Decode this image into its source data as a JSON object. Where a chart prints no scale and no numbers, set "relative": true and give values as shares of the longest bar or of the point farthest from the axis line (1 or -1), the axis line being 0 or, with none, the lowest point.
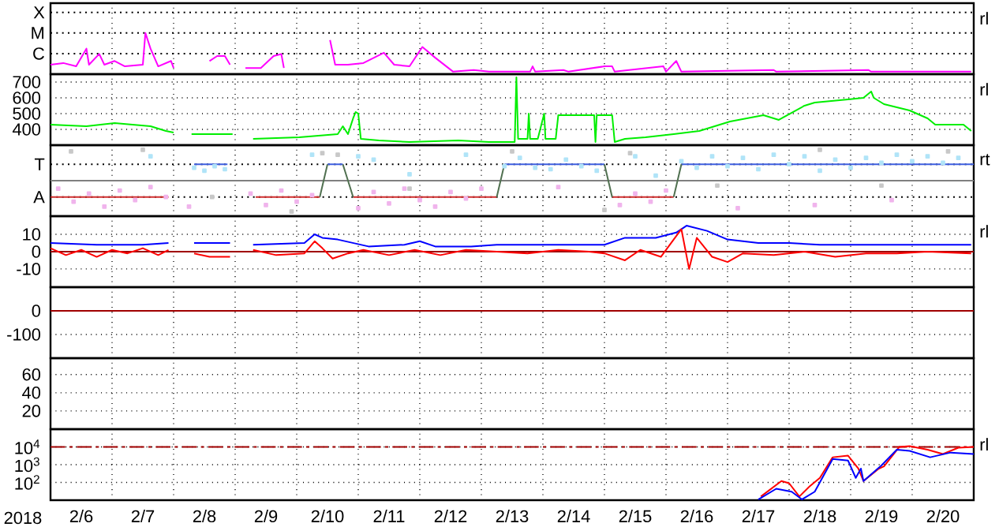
{
  "chart_data": [
    {
      "type": "line",
      "xlim": [
        "2018-02-06T00:00",
        "2018-02-21T00:00"
      ],
      "xticks": [
        {
          "value": "2018-02-07T00:00",
          "label": null
        },
        {
          "value": "2018-02-08T00:00",
          "label": null
        },
        {
          "value": "2018-02-09T00:00",
          "label": null
        },
        {
          "value": "2018-02-10T00:00",
          "label": null
        },
        {
          "value": "2018-02-11T00:00",
          "label": null
        },
        {
          "value": "2018-02-12T00:00",
          "label": null
        },
        {
          "value": "2018-02-13T00:00",
          "label": null
        },
        {
          "value": "2018-02-14T00:00",
          "label": null
        },
        {
          "value": "2018-02-15T00:00",
          "label": null
        },
        {
          "value": "2018-02-16T00:00",
          "label": null
        },
        {
          "value": "2018-02-17T00:00",
          "label": null
        },
        {
          "value": "2018-02-18T00:00",
          "label": null
        },
        {
          "value": "2018-02-19T00:00",
          "label": null
        },
        {
          "value": "2018-02-20T00:00",
          "label": null
        }
      ],
      "relative": true,
      "grid": "x",
      "tick_labels": "y",
      "annotations": [
        "rl"
      ],
      "ref_lines": [
        {
          "axis": "y",
          "value": 1.5,
          "label": "X",
          "color": "#000000",
          "line_style": "dotted"
        },
        {
          "axis": "y",
          "value": 1,
          "label": "M",
          "color": "#000000",
          "line_style": "dotted"
        },
        {
          "axis": "y",
          "value": 0.5,
          "label": "C",
          "color": "#000000",
          "line_style": "dotted"
        }
      ],
      "series": [
        {
          "color": "#ff00ff",
          "x": [
            "2018-02-06T00:00",
            "2018-02-06T05:00",
            "2018-02-06T10:00",
            "2018-02-06T14:00",
            "2018-02-06T15:00",
            "2018-02-06T19:00",
            "2018-02-06T21:00",
            "2018-02-07T01:00",
            "2018-02-07T05:00",
            "2018-02-07T12:00",
            "2018-02-07T13:00",
            "2018-02-07T15:00",
            "2018-02-07T18:00",
            "2018-02-07T23:00",
            "2018-02-08T00:00",
            "2018-02-08T06:00",
            "2018-02-08T14:00",
            "2018-02-08T17:00",
            "2018-02-08T20:00",
            "2018-02-08T22:00",
            "2018-02-09T00:00",
            "2018-02-09T04:00",
            "2018-02-09T10:00",
            "2018-02-09T15:00",
            "2018-02-09T18:00",
            "2018-02-09T19:00",
            "2018-02-10T02:00",
            "2018-02-10T13:00",
            "2018-02-10T15:00",
            "2018-02-10T20:00",
            "2018-02-11T02:00",
            "2018-02-11T10:00",
            "2018-02-11T14:00",
            "2018-02-11T20:00",
            "2018-02-12T01:00",
            "2018-02-12T06:00",
            "2018-02-12T13:00",
            "2018-02-12T21:00",
            "2018-02-13T03:00",
            "2018-02-13T19:00",
            "2018-02-13T20:00",
            "2018-02-13T21:00",
            "2018-02-14T08:00",
            "2018-02-14T10:00",
            "2018-02-15T00:00",
            "2018-02-15T03:00",
            "2018-02-15T04:00",
            "2018-02-15T23:00",
            "2018-02-16T00:00",
            "2018-02-16T04:00",
            "2018-02-16T06:00",
            "2018-02-17T18:00",
            "2018-02-17T19:00",
            "2018-02-19T07:00",
            "2018-02-19T08:00",
            "2018-02-20T23:00"
          ],
          "values": [
            0.23,
            0.27,
            0.19,
            0.62,
            0.23,
            0.49,
            0.23,
            0.32,
            0.19,
            0.23,
            1,
            0.62,
            0.19,
            0.32,
            0.15,
            null,
            0.32,
            0.44,
            0.44,
            0.23,
            null,
            0.15,
            0.15,
            0.44,
            0.49,
            0.15,
            null,
            0.83,
            0.23,
            0.23,
            0.27,
            0.52,
            0.23,
            0.19,
            0.66,
            0.4,
            0.06,
            0.1,
            0.06,
            0.06,
            0.19,
            0.06,
            0.1,
            0.06,
            0.19,
            0.19,
            0.06,
            0.19,
            0.06,
            0.32,
            0.06,
            0.1,
            0.06,
            0.1,
            0.06,
            0.06
          ]
        }
      ]
    },
    {
      "type": "line",
      "xlim": [
        "2018-02-06T00:00",
        "2018-02-21T00:00"
      ],
      "xticks": [
        {
          "value": "2018-02-07T00:00",
          "label": null
        },
        {
          "value": "2018-02-08T00:00",
          "label": null
        },
        {
          "value": "2018-02-09T00:00",
          "label": null
        },
        {
          "value": "2018-02-10T00:00",
          "label": null
        },
        {
          "value": "2018-02-11T00:00",
          "label": null
        },
        {
          "value": "2018-02-12T00:00",
          "label": null
        },
        {
          "value": "2018-02-13T00:00",
          "label": null
        },
        {
          "value": "2018-02-14T00:00",
          "label": null
        },
        {
          "value": "2018-02-15T00:00",
          "label": null
        },
        {
          "value": "2018-02-16T00:00",
          "label": null
        },
        {
          "value": "2018-02-17T00:00",
          "label": null
        },
        {
          "value": "2018-02-18T00:00",
          "label": null
        },
        {
          "value": "2018-02-19T00:00",
          "label": null
        },
        {
          "value": "2018-02-20T00:00",
          "label": null
        }
      ],
      "ylim": [
        300,
        750
      ],
      "yticks": [
        400,
        500,
        600,
        700
      ],
      "grid": true,
      "tick_labels": "y",
      "annotations": [
        "rl"
      ],
      "series": [
        {
          "color": "#00ee00",
          "x": [
            "2018-02-06T00:00",
            "2018-02-06T14:00",
            "2018-02-07T01:00",
            "2018-02-07T15:00",
            "2018-02-07T21:00",
            "2018-02-08T00:00",
            "2018-02-08T02:00",
            "2018-02-08T07:00",
            "2018-02-08T23:00",
            "2018-02-09T03:00",
            "2018-02-09T07:00",
            "2018-02-10T01:00",
            "2018-02-10T16:00",
            "2018-02-10T18:00",
            "2018-02-10T20:00",
            "2018-02-10T22:00",
            "2018-02-10T23:00",
            "2018-02-11T00:00",
            "2018-02-11T01:00",
            "2018-02-11T08:00",
            "2018-02-11T20:00",
            "2018-02-12T15:00",
            "2018-02-13T03:00",
            "2018-02-13T13:00",
            "2018-02-13T13:40",
            "2018-02-13T14:20",
            "2018-02-13T18:00",
            "2018-02-13T18:30",
            "2018-02-13T19:00",
            "2018-02-13T22:00",
            "2018-02-14T00:30",
            "2018-02-14T01:00",
            "2018-02-14T05:00",
            "2018-02-14T06:00",
            "2018-02-14T20:00",
            "2018-02-14T20:30",
            "2018-02-14T21:00",
            "2018-02-15T03:00",
            "2018-02-15T04:00",
            "2018-02-15T08:00",
            "2018-02-15T16:00",
            "2018-02-16T03:00",
            "2018-02-16T13:00",
            "2018-02-17T01:00",
            "2018-02-17T14:00",
            "2018-02-17T20:00",
            "2018-02-18T06:00",
            "2018-02-18T10:00",
            "2018-02-18T23:00",
            "2018-02-19T05:00",
            "2018-02-19T08:00",
            "2018-02-19T09:00",
            "2018-02-19T13:00",
            "2018-02-19T23:00",
            "2018-02-20T06:00",
            "2018-02-20T09:00",
            "2018-02-20T20:00",
            "2018-02-20T23:00"
          ],
          "values": [
            430,
            420,
            440,
            420,
            390,
            380,
            null,
            370,
            370,
            null,
            340,
            350,
            370,
            420,
            370,
            470,
            510,
            500,
            340,
            330,
            320,
            330,
            320,
            320,
            730,
            340,
            340,
            500,
            340,
            340,
            500,
            340,
            340,
            490,
            490,
            320,
            490,
            490,
            320,
            340,
            350,
            370,
            390,
            450,
            490,
            460,
            550,
            570,
            590,
            600,
            640,
            600,
            560,
            520,
            470,
            430,
            430,
            390
          ]
        }
      ]
    },
    {
      "type": "line",
      "xlim": [
        "2018-02-06T00:00",
        "2018-02-21T00:00"
      ],
      "xticks": [
        {
          "value": "2018-02-07T00:00",
          "label": null
        },
        {
          "value": "2018-02-08T00:00",
          "label": null
        },
        {
          "value": "2018-02-09T00:00",
          "label": null
        },
        {
          "value": "2018-02-10T00:00",
          "label": null
        },
        {
          "value": "2018-02-11T00:00",
          "label": null
        },
        {
          "value": "2018-02-12T00:00",
          "label": null
        },
        {
          "value": "2018-02-13T00:00",
          "label": null
        },
        {
          "value": "2018-02-14T00:00",
          "label": null
        },
        {
          "value": "2018-02-15T00:00",
          "label": null
        },
        {
          "value": "2018-02-16T00:00",
          "label": null
        },
        {
          "value": "2018-02-17T00:00",
          "label": null
        },
        {
          "value": "2018-02-18T00:00",
          "label": null
        },
        {
          "value": "2018-02-19T00:00",
          "label": null
        },
        {
          "value": "2018-02-20T00:00",
          "label": null
        }
      ],
      "relative": true,
      "grid": "x",
      "tick_labels": "y",
      "annotations": [
        "rt"
      ],
      "ref_lines": [
        {
          "axis": "y",
          "value": 0,
          "color": "#808080"
        },
        {
          "axis": "y",
          "value": 0.53,
          "label": "T",
          "color": "#000000",
          "line_style": "dotted"
        },
        {
          "axis": "y",
          "value": -0.53,
          "label": "A",
          "color": "#000000",
          "line_style": "dotted"
        }
      ],
      "series": [
        {
          "type": "scatter",
          "marker": "square",
          "color": "#c8c8c8",
          "x": [
            "2018-02-06T08:00",
            "2018-02-07T12:00",
            "2018-02-08T15:00",
            "2018-02-09T22:00",
            "2018-02-10T10:00",
            "2018-02-10T16:00",
            "2018-02-11T20:00",
            "2018-02-13T12:00",
            "2018-02-15T00:00",
            "2018-02-15T10:00",
            "2018-02-16T20:00",
            "2018-02-18T12:00",
            "2018-02-19T12:00",
            "2018-02-20T14:00"
          ],
          "values": [
            0.95,
            1,
            -0.53,
            -1,
            0.89,
            0.84,
            -0.26,
            0.95,
            -0.95,
            0.89,
            -0.16,
            1,
            -0.16,
            0.95
          ]
        },
        {
          "type": "scatter",
          "marker": "square",
          "color": "#b0e4f8",
          "x": [
            "2018-02-07T15:00",
            "2018-02-08T08:00",
            "2018-02-08T12:00",
            "2018-02-08T16:00",
            "2018-02-08T20:00",
            "2018-02-10T06:00",
            "2018-02-11T00:00",
            "2018-02-11T06:00",
            "2018-02-11T20:00",
            "2018-02-12T18:00",
            "2018-02-13T09:00",
            "2018-02-13T15:00",
            "2018-02-13T21:00",
            "2018-02-14T03:00",
            "2018-02-14T09:00",
            "2018-02-14T15:00",
            "2018-02-14T21:00",
            "2018-02-15T12:00",
            "2018-02-15T20:00",
            "2018-02-16T06:00",
            "2018-02-16T12:00",
            "2018-02-16T18:00",
            "2018-02-17T00:00",
            "2018-02-17T06:00",
            "2018-02-17T12:00",
            "2018-02-17T18:00",
            "2018-02-18T00:00",
            "2018-02-18T06:00",
            "2018-02-18T12:00",
            "2018-02-18T18:00",
            "2018-02-19T00:00",
            "2018-02-19T06:00",
            "2018-02-19T12:00",
            "2018-02-19T18:00",
            "2018-02-20T00:00",
            "2018-02-20T06:00",
            "2018-02-20T12:00",
            "2018-02-20T18:00"
          ],
          "values": [
            0.79,
            0.42,
            0.32,
            0.47,
            0.37,
            0.84,
            0.79,
            0.68,
            0.21,
            0.84,
            0.47,
            0.74,
            0.42,
            0.37,
            0.68,
            0.47,
            0.32,
            0.79,
            0.16,
            0.63,
            0.42,
            0.79,
            0.47,
            0.74,
            0.37,
            0.84,
            0.53,
            0.79,
            0.32,
            0.68,
            0.42,
            0.74,
            0.58,
            0.84,
            0.63,
            0.79,
            0.58,
            0.74
          ]
        },
        {
          "type": "scatter",
          "marker": "square",
          "color": "#f0b4ec",
          "x": [
            "2018-02-06T03:00",
            "2018-02-06T09:00",
            "2018-02-06T15:00",
            "2018-02-06T21:00",
            "2018-02-07T03:00",
            "2018-02-07T09:00",
            "2018-02-07T15:00",
            "2018-02-07T21:00",
            "2018-02-08T06:00",
            "2018-02-09T06:00",
            "2018-02-09T12:00",
            "2018-02-09T18:00",
            "2018-02-10T00:00",
            "2018-02-10T06:00",
            "2018-02-11T00:00",
            "2018-02-11T06:00",
            "2018-02-11T12:00",
            "2018-02-11T18:00",
            "2018-02-12T00:00",
            "2018-02-12T06:00",
            "2018-02-12T12:00",
            "2018-02-12T18:00",
            "2018-02-13T00:00",
            "2018-02-14T06:00",
            "2018-02-15T06:00",
            "2018-02-15T12:00",
            "2018-02-15T18:00",
            "2018-02-16T00:00",
            "2018-02-17T04:00",
            "2018-02-18T10:00",
            "2018-02-19T16:00"
          ],
          "values": [
            -0.26,
            -0.68,
            -0.42,
            -0.84,
            -0.32,
            -0.63,
            -0.21,
            -0.53,
            -0.84,
            -0.42,
            -0.79,
            -0.32,
            -0.68,
            -0.47,
            -0.89,
            -0.37,
            -0.74,
            -0.26,
            -0.63,
            -0.84,
            -0.37,
            -0.58,
            -0.26,
            -0.21,
            -0.79,
            -0.42,
            -0.68,
            -0.32,
            -0.89,
            -0.79,
            -0.63
          ]
        },
        {
          "color": "#4060e0",
          "x": [
            "2018-02-08T08:00",
            "2018-02-08T21:00",
            "2018-02-09T00:00",
            "2018-02-10T12:00",
            "2018-02-10T18:00",
            "2018-02-10T20:00",
            "2018-02-13T09:00",
            "2018-02-15T00:00",
            "2018-02-15T12:00",
            "2018-02-16T06:00",
            "2018-02-21T00:00"
          ],
          "values": [
            0.53,
            0.53,
            null,
            0.53,
            0.53,
            null,
            0.53,
            0.53,
            null,
            0.53,
            0.53
          ]
        },
        {
          "color": "#d03030",
          "x": [
            "2018-02-06T00:00",
            "2018-02-07T22:00",
            "2018-02-08T00:00",
            "2018-02-09T08:00",
            "2018-02-10T09:00",
            "2018-02-10T10:00",
            "2018-02-10T22:00",
            "2018-02-13T06:00",
            "2018-02-14T00:00",
            "2018-02-15T03:00",
            "2018-02-16T03:00"
          ],
          "values": [
            -0.53,
            -0.53,
            null,
            -0.53,
            -0.53,
            null,
            -0.53,
            -0.53,
            null,
            -0.53,
            -0.53
          ]
        },
        {
          "color": "#507050",
          "x": [
            "2018-02-10T09:00",
            "2018-02-10T12:00",
            "2018-02-10T15:00",
            "2018-02-10T18:00",
            "2018-02-10T22:00",
            "2018-02-11T00:00",
            "2018-02-13T06:00",
            "2018-02-13T09:00",
            "2018-02-14T00:00",
            "2018-02-15T00:00",
            "2018-02-15T03:00",
            "2018-02-15T12:00",
            "2018-02-16T03:00",
            "2018-02-16T06:00"
          ],
          "values": [
            -0.53,
            0.53,
            null,
            0.53,
            -0.53,
            null,
            -0.53,
            0.53,
            null,
            0.53,
            -0.53,
            null,
            -0.53,
            0.53
          ]
        }
      ]
    },
    {
      "type": "line",
      "xlim": [
        "2018-02-06T00:00",
        "2018-02-21T00:00"
      ],
      "xticks": [
        {
          "value": "2018-02-07T00:00",
          "label": null
        },
        {
          "value": "2018-02-08T00:00",
          "label": null
        },
        {
          "value": "2018-02-09T00:00",
          "label": null
        },
        {
          "value": "2018-02-10T00:00",
          "label": null
        },
        {
          "value": "2018-02-11T00:00",
          "label": null
        },
        {
          "value": "2018-02-12T00:00",
          "label": null
        },
        {
          "value": "2018-02-13T00:00",
          "label": null
        },
        {
          "value": "2018-02-14T00:00",
          "label": null
        },
        {
          "value": "2018-02-15T00:00",
          "label": null
        },
        {
          "value": "2018-02-16T00:00",
          "label": null
        },
        {
          "value": "2018-02-17T00:00",
          "label": null
        },
        {
          "value": "2018-02-18T00:00",
          "label": null
        },
        {
          "value": "2018-02-19T00:00",
          "label": null
        },
        {
          "value": "2018-02-20T00:00",
          "label": null
        }
      ],
      "ylim": [
        -20.5,
        20.5
      ],
      "yticks": [
        -10,
        0,
        10
      ],
      "grid": true,
      "tick_labels": "y",
      "annotations": [
        "rl"
      ],
      "ref_lines": [
        {
          "axis": "y",
          "value": 0,
          "color": "#a00000"
        }
      ],
      "series": [
        {
          "color": "#0000ff",
          "x": [
            "2018-02-06T00:00",
            "2018-02-06T18:00",
            "2018-02-07T12:00",
            "2018-02-07T22:00",
            "2018-02-08T03:00",
            "2018-02-08T08:00",
            "2018-02-08T22:00",
            "2018-02-09T03:00",
            "2018-02-09T07:00",
            "2018-02-10T03:00",
            "2018-02-10T07:00",
            "2018-02-10T10:00",
            "2018-02-10T16:00",
            "2018-02-10T22:00",
            "2018-02-11T04:00",
            "2018-02-11T18:00",
            "2018-02-12T00:00",
            "2018-02-12T06:00",
            "2018-02-12T20:00",
            "2018-02-13T06:00",
            "2018-02-14T12:00",
            "2018-02-15T00:00",
            "2018-02-15T08:00",
            "2018-02-15T20:00",
            "2018-02-16T04:00",
            "2018-02-16T08:00",
            "2018-02-16T16:00",
            "2018-02-17T00:00",
            "2018-02-17T12:00",
            "2018-02-18T00:00",
            "2018-02-18T12:00",
            "2018-02-19T00:00",
            "2018-02-19T12:00",
            "2018-02-20T00:00",
            "2018-02-20T23:00"
          ],
          "values": [
            5,
            4,
            4,
            5,
            null,
            5,
            5,
            null,
            4,
            5,
            10,
            8,
            7,
            5,
            3,
            4,
            6,
            3,
            3,
            4,
            4,
            4,
            8,
            8,
            11,
            15,
            12,
            7,
            5,
            5,
            4,
            4,
            4,
            4,
            4
          ]
        },
        {
          "color": "#ff0000",
          "x": [
            "2018-02-06T00:00",
            "2018-02-06T06:00",
            "2018-02-06T12:00",
            "2018-02-06T18:00",
            "2018-02-07T00:00",
            "2018-02-07T06:00",
            "2018-02-07T12:00",
            "2018-02-07T18:00",
            "2018-02-07T22:00",
            "2018-02-08T03:00",
            "2018-02-08T08:00",
            "2018-02-08T14:00",
            "2018-02-08T22:00",
            "2018-02-09T03:00",
            "2018-02-09T07:00",
            "2018-02-09T16:00",
            "2018-02-10T03:00",
            "2018-02-10T07:00",
            "2018-02-10T10:00",
            "2018-02-10T14:00",
            "2018-02-10T20:00",
            "2018-02-11T02:00",
            "2018-02-11T12:00",
            "2018-02-11T22:00",
            "2018-02-12T08:00",
            "2018-02-12T18:00",
            "2018-02-13T06:00",
            "2018-02-13T18:00",
            "2018-02-14T06:00",
            "2018-02-14T18:00",
            "2018-02-15T00:00",
            "2018-02-15T08:00",
            "2018-02-15T14:00",
            "2018-02-15T22:00",
            "2018-02-16T06:00",
            "2018-02-16T09:00",
            "2018-02-16T12:00",
            "2018-02-16T18:00",
            "2018-02-17T00:00",
            "2018-02-17T06:00",
            "2018-02-17T18:00",
            "2018-02-18T06:00",
            "2018-02-18T18:00",
            "2018-02-19T06:00",
            "2018-02-19T18:00",
            "2018-02-20T06:00",
            "2018-02-20T23:00"
          ],
          "values": [
            2,
            -2,
            1,
            -3,
            1,
            -1,
            2,
            -2,
            1,
            null,
            -1,
            -3,
            -3,
            null,
            1,
            -2,
            -1,
            6,
            2,
            -4,
            -1,
            1,
            -2,
            1,
            -2,
            1,
            0,
            -1,
            1,
            0,
            -1,
            -5,
            1,
            -3,
            13,
            -10,
            8,
            -3,
            -6,
            -1,
            -2,
            0,
            -3,
            -1,
            -1,
            0,
            -1
          ]
        }
      ]
    },
    {
      "type": "line",
      "xlim": [
        "2018-02-06T00:00",
        "2018-02-21T00:00"
      ],
      "xticks": [
        {
          "value": "2018-02-07T00:00",
          "label": null
        },
        {
          "value": "2018-02-08T00:00",
          "label": null
        },
        {
          "value": "2018-02-09T00:00",
          "label": null
        },
        {
          "value": "2018-02-10T00:00",
          "label": null
        },
        {
          "value": "2018-02-11T00:00",
          "label": null
        },
        {
          "value": "2018-02-12T00:00",
          "label": null
        },
        {
          "value": "2018-02-13T00:00",
          "label": null
        },
        {
          "value": "2018-02-14T00:00",
          "label": null
        },
        {
          "value": "2018-02-15T00:00",
          "label": null
        },
        {
          "value": "2018-02-16T00:00",
          "label": null
        },
        {
          "value": "2018-02-17T00:00",
          "label": null
        },
        {
          "value": "2018-02-18T00:00",
          "label": null
        },
        {
          "value": "2018-02-19T00:00",
          "label": null
        },
        {
          "value": "2018-02-20T00:00",
          "label": null
        }
      ],
      "ylim": [
        -200,
        100
      ],
      "yticks": [
        -100,
        0
      ],
      "grid": true,
      "tick_labels": "y",
      "ref_lines": [
        {
          "axis": "y",
          "value": 0,
          "color": "#a00000"
        }
      ]
    },
    {
      "type": "line",
      "xlim": [
        "2018-02-06T00:00",
        "2018-02-21T00:00"
      ],
      "xticks": [
        {
          "value": "2018-02-07T00:00",
          "label": null
        },
        {
          "value": "2018-02-08T00:00",
          "label": null
        },
        {
          "value": "2018-02-09T00:00",
          "label": null
        },
        {
          "value": "2018-02-10T00:00",
          "label": null
        },
        {
          "value": "2018-02-11T00:00",
          "label": null
        },
        {
          "value": "2018-02-12T00:00",
          "label": null
        },
        {
          "value": "2018-02-13T00:00",
          "label": null
        },
        {
          "value": "2018-02-14T00:00",
          "label": null
        },
        {
          "value": "2018-02-15T00:00",
          "label": null
        },
        {
          "value": "2018-02-16T00:00",
          "label": null
        },
        {
          "value": "2018-02-17T00:00",
          "label": null
        },
        {
          "value": "2018-02-18T00:00",
          "label": null
        },
        {
          "value": "2018-02-19T00:00",
          "label": null
        },
        {
          "value": "2018-02-20T00:00",
          "label": null
        }
      ],
      "ylim": [
        0,
        78
      ],
      "yticks": [
        20,
        40,
        60
      ],
      "grid": true,
      "tick_labels": "y"
    },
    {
      "type": "line",
      "xlim": [
        "2018-02-06T00:00",
        "2018-02-21T00:00"
      ],
      "xticks": [
        {
          "value": "2018-02-06T12:00",
          "label": "2/6"
        },
        {
          "value": "2018-02-07T00:00",
          "label": null
        },
        {
          "value": "2018-02-07T12:00",
          "label": "2/7"
        },
        {
          "value": "2018-02-08T00:00",
          "label": null
        },
        {
          "value": "2018-02-08T12:00",
          "label": "2/8"
        },
        {
          "value": "2018-02-09T00:00",
          "label": null
        },
        {
          "value": "2018-02-09T12:00",
          "label": "2/9"
        },
        {
          "value": "2018-02-10T00:00",
          "label": null
        },
        {
          "value": "2018-02-10T12:00",
          "label": "2/10"
        },
        {
          "value": "2018-02-11T00:00",
          "label": null
        },
        {
          "value": "2018-02-11T12:00",
          "label": "2/11"
        },
        {
          "value": "2018-02-12T00:00",
          "label": null
        },
        {
          "value": "2018-02-12T12:00",
          "label": "2/12"
        },
        {
          "value": "2018-02-13T00:00",
          "label": null
        },
        {
          "value": "2018-02-13T12:00",
          "label": "2/13"
        },
        {
          "value": "2018-02-14T00:00",
          "label": null
        },
        {
          "value": "2018-02-14T12:00",
          "label": "2/14"
        },
        {
          "value": "2018-02-15T00:00",
          "label": null
        },
        {
          "value": "2018-02-15T12:00",
          "label": "2/15"
        },
        {
          "value": "2018-02-16T00:00",
          "label": null
        },
        {
          "value": "2018-02-16T12:00",
          "label": "2/16"
        },
        {
          "value": "2018-02-17T00:00",
          "label": null
        },
        {
          "value": "2018-02-17T12:00",
          "label": "2/17"
        },
        {
          "value": "2018-02-18T00:00",
          "label": null
        },
        {
          "value": "2018-02-18T12:00",
          "label": "2/18"
        },
        {
          "value": "2018-02-19T00:00",
          "label": null
        },
        {
          "value": "2018-02-19T12:00",
          "label": "2/19"
        },
        {
          "value": "2018-02-20T00:00",
          "label": null
        },
        {
          "value": "2018-02-20T12:00",
          "label": "2/20"
        }
      ],
      "ylim": [
        10,
        100000
      ],
      "log": true,
      "yticks": [
        {
          "value": 100,
          "label": "10$^{2}$"
        },
        {
          "value": 1000,
          "label": "10$^{3}$"
        },
        {
          "value": 10000,
          "label": "10$^{4}$"
        }
      ],
      "grid": true,
      "xlabel": "2018",
      "annotations": [
        "rl"
      ],
      "ref_lines": [
        {
          "axis": "y",
          "value": 10000,
          "color": "#a00000",
          "line_style": "dashed"
        }
      ],
      "series": [
        {
          "color": "#ff0000",
          "x": [
            "2018-02-17T13:00",
            "2018-02-17T21:00",
            "2018-02-18T00:00",
            "2018-02-18T04:00",
            "2018-02-18T08:00",
            "2018-02-18T12:00",
            "2018-02-18T17:00",
            "2018-02-18T23:00",
            "2018-02-19T03:00",
            "2018-02-19T05:00",
            "2018-02-19T11:00",
            "2018-02-19T13:00",
            "2018-02-19T19:00",
            "2018-02-19T23:00",
            "2018-02-20T06:00",
            "2018-02-20T12:00",
            "2018-02-20T18:00",
            "2018-02-21T00:00"
          ],
          "values": [
            16,
            120,
            90,
            16,
            60,
            180,
            2600,
            3200,
            600,
            120,
            600,
            800,
            10000,
            11000,
            7000,
            4000,
            9000,
            10000
          ]
        },
        {
          "color": "#0000ff",
          "x": [
            "2018-02-17T12:00",
            "2018-02-17T19:00",
            "2018-02-18T01:00",
            "2018-02-18T05:00",
            "2018-02-18T10:00",
            "2018-02-18T17:00",
            "2018-02-18T23:00",
            "2018-02-19T02:00",
            "2018-02-19T04:00",
            "2018-02-19T05:00",
            "2018-02-19T12:00",
            "2018-02-19T18:00",
            "2018-02-19T23:00",
            "2018-02-20T07:00",
            "2018-02-20T15:00",
            "2018-02-21T00:00"
          ],
          "values": [
            11,
            44,
            30,
            11,
            30,
            2100,
            1700,
            180,
            600,
            120,
            900,
            7000,
            6000,
            2600,
            4800,
            4000
          ]
        }
      ]
    }
  ]
}
